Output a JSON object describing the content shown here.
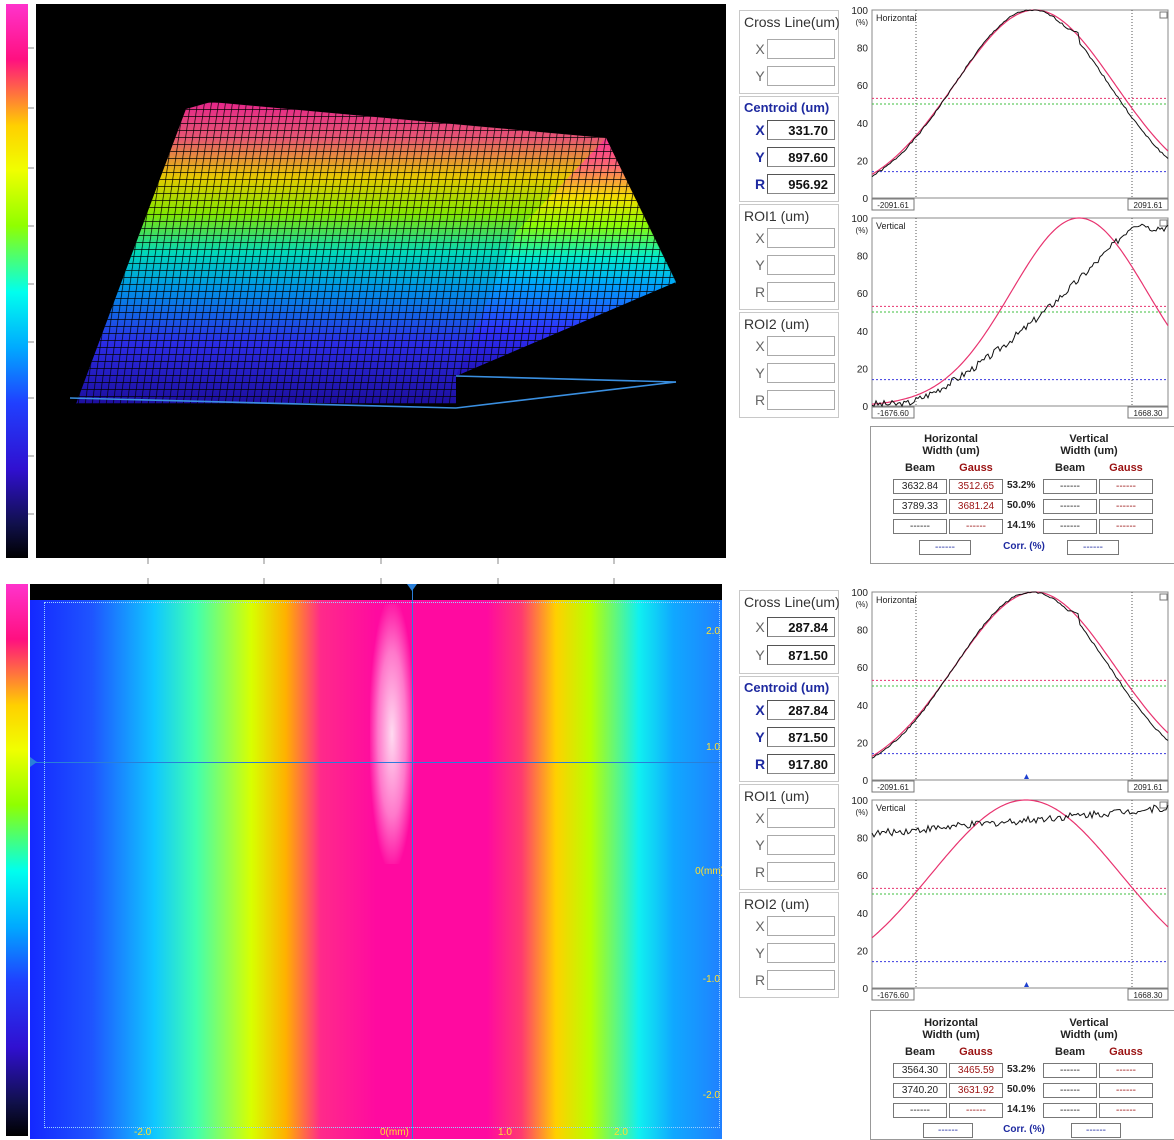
{
  "colors": {
    "accent_blue": "#1e2aa0",
    "gauss_red": "#9a1010",
    "fit_curve": "#e8336f"
  },
  "panels": [
    {
      "id": "top",
      "side": {
        "cross_line": {
          "title": "Cross Line(um)",
          "x": "",
          "y": ""
        },
        "centroid": {
          "title": "Centroid (um)",
          "x": "331.70",
          "y": "897.60",
          "r": "956.92"
        },
        "roi1": {
          "title": "ROI1 (um)",
          "x": "",
          "y": "",
          "r": ""
        },
        "roi2": {
          "title": "ROI2 (um)",
          "x": "",
          "y": "",
          "r": ""
        }
      },
      "horizontal": {
        "title": "Horizontal",
        "pct_unit": "(%)",
        "y_ticks": [
          "100",
          "80",
          "60",
          "40",
          "20",
          "0"
        ],
        "x_min": "-2091.61",
        "x_max": "2091.61"
      },
      "vertical": {
        "title": "Vertical",
        "pct_unit": "(%)",
        "y_ticks": [
          "100",
          "80",
          "60",
          "40",
          "20",
          "0"
        ],
        "x_min": "-1676.60",
        "x_max": "1668.30"
      },
      "results": {
        "h_title": "Horizontal",
        "h_sub": "Width  (um)",
        "v_title": "Vertical",
        "v_sub": "Width  (um)",
        "beam": "Beam",
        "gauss": "Gauss",
        "rows": [
          {
            "hb": "3632.84",
            "hg": "3512.65",
            "pct": "53.2%",
            "vb": "------",
            "vg": "------"
          },
          {
            "hb": "3789.33",
            "hg": "3681.24",
            "pct": "50.0%",
            "vb": "------",
            "vg": "------"
          },
          {
            "hb": "------",
            "hg": "------",
            "pct": "14.1%",
            "vb": "------",
            "vg": "------"
          }
        ],
        "corr_label": "Corr. (%)",
        "corr_left": "------",
        "corr_right": "------"
      }
    },
    {
      "id": "bottom",
      "side": {
        "cross_line": {
          "title": "Cross Line(um)",
          "x": "287.84",
          "y": "871.50"
        },
        "centroid": {
          "title": "Centroid (um)",
          "x": "287.84",
          "y": "871.50",
          "r": "917.80"
        },
        "roi1": {
          "title": "ROI1 (um)",
          "x": "",
          "y": "",
          "r": ""
        },
        "roi2": {
          "title": "ROI2 (um)",
          "x": "",
          "y": "",
          "r": ""
        }
      },
      "horizontal": {
        "title": "Horizontal",
        "pct_unit": "(%)",
        "y_ticks": [
          "100",
          "80",
          "60",
          "40",
          "20",
          "0"
        ],
        "x_min": "-2091.61",
        "x_max": "2091.61"
      },
      "vertical": {
        "title": "Vertical",
        "pct_unit": "(%)",
        "y_ticks": [
          "100",
          "80",
          "60",
          "40",
          "20",
          "0"
        ],
        "x_min": "-1676.60",
        "x_max": "1668.30"
      },
      "results": {
        "h_title": "Horizontal",
        "h_sub": "Width  (um)",
        "v_title": "Vertical",
        "v_sub": "Width  (um)",
        "beam": "Beam",
        "gauss": "Gauss",
        "rows": [
          {
            "hb": "3564.30",
            "hg": "3465.59",
            "pct": "53.2%",
            "vb": "------",
            "vg": "------"
          },
          {
            "hb": "3740.20",
            "hg": "3631.92",
            "pct": "50.0%",
            "vb": "------",
            "vg": "------"
          },
          {
            "hb": "------",
            "hg": "------",
            "pct": "14.1%",
            "vb": "------",
            "vg": "------"
          }
        ],
        "corr_label": "Corr. (%)",
        "corr_left": "------",
        "corr_right": "------"
      }
    }
  ],
  "image2d": {
    "y_axis": [
      "2.0",
      "1.0",
      "0(mm)",
      "-1.0",
      "-2.0"
    ],
    "x_axis": [
      "-2.0",
      "0(mm)",
      "1.0",
      "2.0"
    ]
  }
}
